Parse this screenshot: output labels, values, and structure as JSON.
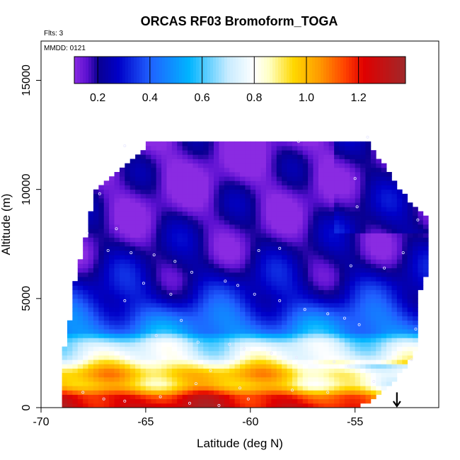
{
  "chart_data": {
    "type": "heatmap",
    "title": "ORCAS RF03 Bromoform_TOGA",
    "xlabel": "Latitude (deg N)",
    "ylabel": "Altitude (m)",
    "xlim": [
      -70,
      -51
    ],
    "ylim": [
      0,
      16800
    ],
    "x_ticks": [
      -70,
      -65,
      -60,
      -55
    ],
    "x_tick_labels": [
      "-70",
      "-65",
      "-60",
      "-55"
    ],
    "y_ticks": [
      0,
      5000,
      10000,
      15000
    ],
    "y_tick_labels": [
      "0",
      "5000",
      "10000",
      "15000"
    ],
    "notes": {
      "flights": "Flts: 3",
      "date": "MMDD: 0121"
    },
    "colorbar": {
      "range": [
        0.11,
        1.38
      ],
      "ticks": [
        0.2,
        0.4,
        0.6,
        0.8,
        1.0,
        1.2
      ],
      "tick_labels": [
        "0.2",
        "0.4",
        "0.6",
        "0.8",
        "1.0",
        "1.2"
      ],
      "placement": "top-inside"
    },
    "colormap": [
      [
        0.11,
        "#8a2be2"
      ],
      [
        0.16,
        "#5a10d0"
      ],
      [
        0.2,
        "#0a0090"
      ],
      [
        0.28,
        "#0000c8"
      ],
      [
        0.4,
        "#2060ff"
      ],
      [
        0.55,
        "#00b4ff"
      ],
      [
        0.7,
        "#c8ecff"
      ],
      [
        0.8,
        "#ffffff"
      ],
      [
        0.86,
        "#ffffc0"
      ],
      [
        0.95,
        "#ffd800"
      ],
      [
        1.05,
        "#ff9a00"
      ],
      [
        1.15,
        "#ff4000"
      ],
      [
        1.22,
        "#e00000"
      ],
      [
        1.38,
        "#a0282a"
      ]
    ],
    "altitude_profile": [
      {
        "z": 0,
        "value": 1.27
      },
      {
        "z": 500,
        "value": 1.2
      },
      {
        "z": 1000,
        "value": 0.95
      },
      {
        "z": 1600,
        "value": 1.0
      },
      {
        "z": 2300,
        "value": 0.78
      },
      {
        "z": 3000,
        "value": 0.7
      },
      {
        "z": 3500,
        "value": 0.48
      },
      {
        "z": 4200,
        "value": 0.4
      },
      {
        "z": 5000,
        "value": 0.3
      },
      {
        "z": 6000,
        "value": 0.24
      },
      {
        "z": 7000,
        "value": 0.2
      },
      {
        "z": 8000,
        "value": 0.18
      },
      {
        "z": 9000,
        "value": 0.16
      },
      {
        "z": 10500,
        "value": 0.14
      },
      {
        "z": 12200,
        "value": 0.13
      }
    ],
    "domain_outline": [
      [
        -69.1,
        200
      ],
      [
        -69.1,
        1800
      ],
      [
        -68.8,
        3200
      ],
      [
        -68.5,
        4500
      ],
      [
        -68.4,
        5800
      ],
      [
        -68.1,
        6800
      ],
      [
        -67.8,
        8000
      ],
      [
        -67.5,
        9800
      ],
      [
        -66.4,
        10700
      ],
      [
        -65.5,
        11500
      ],
      [
        -64.8,
        12200
      ],
      [
        -54.4,
        12200
      ],
      [
        -53.6,
        11100
      ],
      [
        -53.1,
        10300
      ],
      [
        -52.3,
        9400
      ],
      [
        -51.6,
        8800
      ],
      [
        -51.5,
        6300
      ],
      [
        -51.9,
        5400
      ],
      [
        -52.1,
        4000
      ],
      [
        -52.0,
        2700
      ],
      [
        -52.6,
        1800
      ],
      [
        -53.5,
        900
      ],
      [
        -54.4,
        250
      ],
      [
        -54.8,
        50
      ],
      [
        -69.1,
        50
      ]
    ],
    "marker": {
      "type": "arrow-down",
      "x": -53,
      "y_top": 700,
      "y_bottom": 0
    },
    "sample_points": [
      [
        -66.0,
        12000
      ],
      [
        -67.2,
        9800
      ],
      [
        -66.4,
        8200
      ],
      [
        -67.8,
        8000
      ],
      [
        -66.8,
        7200
      ],
      [
        -65.7,
        7100
      ],
      [
        -64.6,
        7000
      ],
      [
        -63.6,
        6700
      ],
      [
        -62.8,
        6200
      ],
      [
        -61.2,
        5800
      ],
      [
        -60.6,
        5600
      ],
      [
        -59.8,
        5200
      ],
      [
        -58.6,
        4900
      ],
      [
        -57.4,
        4500
      ],
      [
        -56.3,
        4300
      ],
      [
        -55.5,
        4100
      ],
      [
        -54.8,
        3800
      ],
      [
        -63.8,
        5200
      ],
      [
        -65.1,
        5700
      ],
      [
        -66.0,
        4900
      ],
      [
        -63.3,
        4000
      ],
      [
        -64.5,
        3300
      ],
      [
        -62.5,
        3000
      ],
      [
        -61.0,
        2900
      ],
      [
        -60.3,
        2700
      ],
      [
        -59.0,
        2500
      ],
      [
        -57.8,
        2300
      ],
      [
        -56.0,
        2100
      ],
      [
        -55.3,
        1900
      ],
      [
        -61.9,
        1700
      ],
      [
        -62.6,
        1100
      ],
      [
        -60.5,
        900
      ],
      [
        -58.0,
        800
      ],
      [
        -56.3,
        700
      ],
      [
        -67.0,
        400
      ],
      [
        -66.0,
        300
      ],
      [
        -64.3,
        500
      ],
      [
        -62.9,
        200
      ],
      [
        -61.5,
        100
      ],
      [
        -60.1,
        400
      ],
      [
        -68.0,
        700
      ],
      [
        -57.7,
        12200
      ],
      [
        -54.4,
        12400
      ],
      [
        -55.0,
        10500
      ],
      [
        -54.9,
        9200
      ],
      [
        -52.0,
        8600
      ],
      [
        -52.7,
        7100
      ],
      [
        -58.6,
        7300
      ],
      [
        -59.6,
        7200
      ],
      [
        -55.2,
        6500
      ],
      [
        -53.6,
        6400
      ],
      [
        -52.1,
        3600
      ],
      [
        -52.3,
        2200
      ],
      [
        -54.1,
        1200
      ]
    ]
  }
}
